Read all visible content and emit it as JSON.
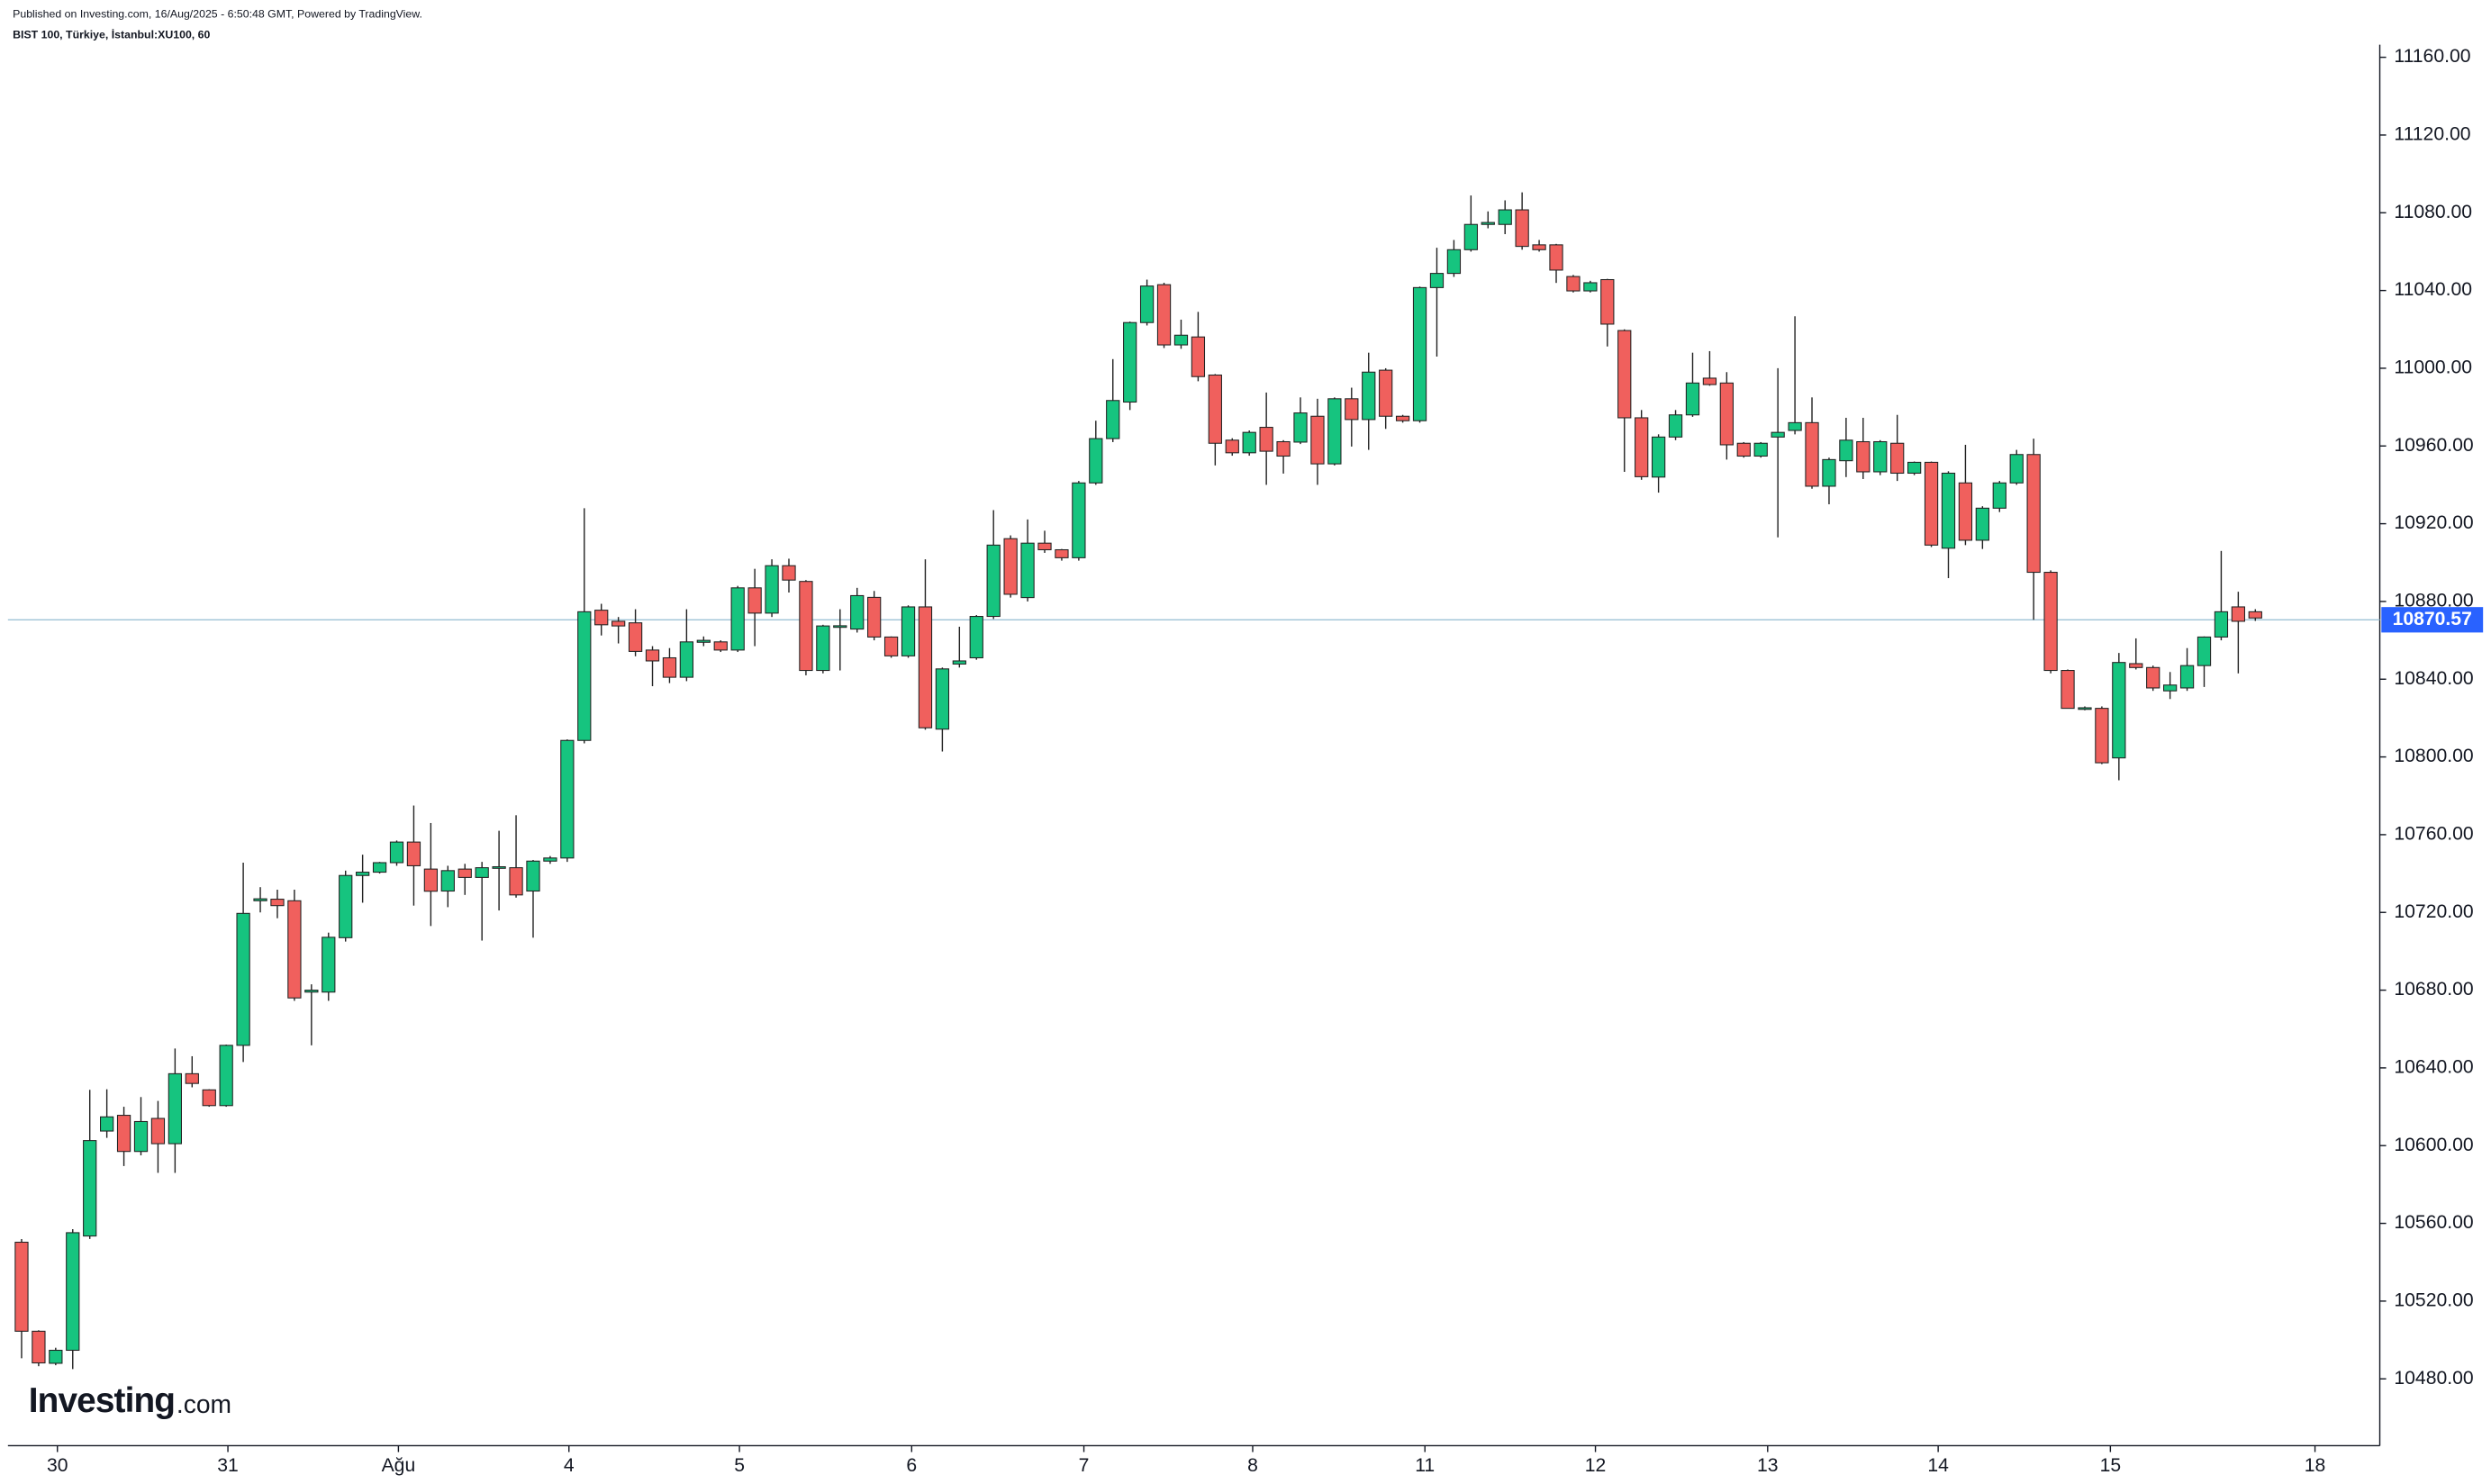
{
  "chart_data": {
    "type": "candlestick",
    "header": "Published on Investing.com, 16/Aug/2025 - 6:50:48 GMT, Powered by TradingView.",
    "symbol": "BIST 100, Türkiye, İstanbul:XU100, 60",
    "logo": "Investing",
    "logo_suffix": ".com",
    "up_color": "#16c47f",
    "down_color": "#f0605d",
    "last_price": 10870.57,
    "last_price_color": "#2962ff",
    "open": [
      10550.3,
      10504.5,
      10488,
      10494.7,
      10553.5,
      10607.5,
      10615.6,
      10597,
      10614,
      10601,
      10637,
      10628.7,
      10620.6,
      10651.6,
      10726,
      10726.8,
      10726,
      10679,
      10679,
      10707,
      10739,
      10740.7,
      10745.6,
      10756.2,
      10742.3,
      10731,
      10742.3,
      10738,
      10743,
      10743,
      10731,
      10746.4,
      10748,
      10808.5,
      10875.5,
      10869.8,
      10869,
      10855,
      10851,
      10841,
      10859,
      10859.2,
      10855,
      10887,
      10874,
      10898.4,
      10890.3,
      10844.5,
      10867,
      10865.8,
      10882.1,
      10861.7,
      10852,
      10877.2,
      10814.3,
      10847.8,
      10851,
      10872.3,
      10912.3,
      10882,
      10910,
      10906.6,
      10902.5,
      10941,
      10963.8,
      10982.6,
      11023.5,
      11043,
      11012,
      11016.1,
      10996.5,
      10963,
      10956.5,
      10969.6,
      10962.2,
      10962,
      10975.3,
      10950.8,
      10984.3,
      10973.6,
      10999,
      10975.3,
      10973,
      11041.5,
      11048.8,
      11061,
      11074,
      11074,
      11081.5,
      11063.5,
      11063.5,
      11047.2,
      11039.8,
      11045.6,
      11019.4,
      10974.5,
      10944,
      10964.6,
      10976,
      10994.9,
      10992.4,
      10961.4,
      10954.8,
      10964.6,
      10968,
      10972,
      10939.3,
      10952.4,
      10962.2,
      10946.7,
      10961.4,
      10946,
      10951.6,
      10907.4,
      10941,
      10911.5,
      10928,
      10941,
      10955.6,
      10895,
      10844.5,
      10825,
      10825,
      10799.5,
      10848,
      10846,
      10834,
      10835.5,
      10847,
      10861.7,
      10877.2,
      10874.7
    ],
    "high": [
      10551.9,
      10505,
      10496,
      10557,
      10628.7,
      10629,
      10620,
      10625,
      10623,
      10650,
      10646,
      10629,
      10652,
      10745.6,
      10733,
      10731.7,
      10731.7,
      10683,
      10709.6,
      10741.5,
      10749.7,
      10746,
      10757,
      10775,
      10766,
      10744,
      10745,
      10746,
      10762,
      10770,
      10747,
      10749,
      10809,
      10928,
      10878.8,
      10872,
      10876,
      10857,
      10856,
      10876,
      10862,
      10860,
      10888,
      10896.8,
      10901.7,
      10902,
      10891,
      10868,
      10876,
      10887,
      10885.4,
      10862,
      10878,
      10901.7,
      10846,
      10867,
      10873,
      10927,
      10914,
      10922.2,
      10916.4,
      10907,
      10942,
      10973,
      11004.7,
      11024,
      11045.6,
      11044,
      11025,
      11029,
      10997,
      10964,
      10968,
      10987.5,
      10963,
      10985,
      10984.3,
      10985,
      10990,
      11008,
      11000,
      10976,
      11042,
      11062,
      11066,
      11088.9,
      11080.7,
      11086.4,
      11090.5,
      11066,
      11064,
      11048,
      11045,
      11046,
      11020,
      10978.5,
      10966,
      10978.5,
      11008,
      11008.8,
      10998,
      10962,
      10962,
      11000,
      11026.7,
      10985,
      10954,
      10974.5,
      10974.5,
      10963,
      10976,
      10952,
      10952,
      10947,
      10960.6,
      10929,
      10942,
      10958,
      10963.8,
      10896,
      10845,
      10826,
      10826,
      10853.5,
      10861,
      10847,
      10843.7,
      10856,
      10862,
      10906,
      10885,
      10876
    ],
    "low": [
      10490.6,
      10486.5,
      10487,
      10485,
      10552,
      10604,
      10589.5,
      10595,
      10586,
      10586,
      10630,
      10620,
      10620,
      10643,
      10720,
      10717,
      10674.5,
      10651.6,
      10674.5,
      10705,
      10725,
      10740,
      10744,
      10723.5,
      10713,
      10722.7,
      10729,
      10705.5,
      10721,
      10727.6,
      10707,
      10745,
      10746,
      10807,
      10862.5,
      10858.4,
      10851.8,
      10836.4,
      10838,
      10839,
      10857,
      10854,
      10854,
      10857,
      10872,
      10884.6,
      10842,
      10843,
      10844.5,
      10864,
      10860,
      10851,
      10851,
      10814,
      10802.8,
      10846,
      10850,
      10871,
      10882,
      10880,
      10905,
      10901,
      10901,
      10940,
      10962,
      10978.5,
      11022,
      11010.4,
      11010,
      10993.3,
      10950,
      10955,
      10955,
      10940,
      10945.8,
      10961,
      10940,
      10950,
      10959.7,
      10958,
      10968.8,
      10972,
      10972,
      11006,
      11047,
      11060,
      11072,
      11069,
      11061,
      11060,
      11043.9,
      11039,
      11039,
      11011.2,
      10946.7,
      10942.6,
      10936,
      10963,
      10975,
      10991,
      10953,
      10954,
      10954,
      10913,
      10966,
      10938,
      10930,
      10944,
      10943,
      10945,
      10942,
      10945,
      10908,
      10892,
      10909,
      10907,
      10926,
      10940,
      10870.6,
      10843,
      10825,
      10824,
      10796.3,
      10788,
      10845,
      10834,
      10829.8,
      10834,
      10836,
      10860,
      10843,
      10870
    ],
    "close": [
      10504.5,
      10488.2,
      10494.7,
      10555.2,
      10602.6,
      10614.8,
      10597,
      10612.4,
      10601,
      10637,
      10632,
      10620.6,
      10651.6,
      10719.5,
      10727,
      10723.5,
      10676,
      10680,
      10707.2,
      10739,
      10740.7,
      10745.6,
      10756.2,
      10744,
      10730.9,
      10741.5,
      10738,
      10743,
      10743.5,
      10729,
      10746.4,
      10748,
      10808.5,
      10874.7,
      10868,
      10867.4,
      10854.3,
      10849.4,
      10841,
      10859.2,
      10860,
      10855,
      10887,
      10874,
      10898.4,
      10891,
      10844.5,
      10867.4,
      10867.5,
      10883,
      10861.7,
      10852,
      10877.2,
      10815,
      10845.3,
      10849.4,
      10872.3,
      10909,
      10883.7,
      10910,
      10906.6,
      10902.5,
      10941,
      10963.8,
      10983.4,
      11023.5,
      11042.3,
      11012,
      11017,
      10995.7,
      10961.4,
      10956.5,
      10967,
      10957.3,
      10954.8,
      10977,
      10950.8,
      10984.3,
      10973.6,
      10998,
      10975.3,
      10973,
      11041.5,
      11048.8,
      11061,
      11074,
      11075,
      11081.5,
      11062.7,
      11061,
      11050.5,
      11039.8,
      11044,
      11022.7,
      10974.5,
      10944.2,
      10964.6,
      10976,
      10992.4,
      10991.6,
      10960.6,
      10954.8,
      10961.4,
      10967,
      10972,
      10939.3,
      10953,
      10963,
      10946.7,
      10962.2,
      10946,
      10951.6,
      10909,
      10946,
      10911.5,
      10928,
      10941,
      10955.6,
      10895,
      10844.5,
      10825,
      10825.3,
      10797,
      10848.6,
      10846,
      10835.5,
      10837,
      10847,
      10861.7,
      10874.7,
      10869.8,
      10871.5
    ],
    "xlim": [
      -0.8,
      138.3
    ],
    "xticks": [
      {
        "value": 2.1,
        "label": "30"
      },
      {
        "value": 12.1,
        "label": "31"
      },
      {
        "value": 22.1,
        "label": "Ağu"
      },
      {
        "value": 32.1,
        "label": "4"
      },
      {
        "value": 42.1,
        "label": "5"
      },
      {
        "value": 52.2,
        "label": "6"
      },
      {
        "value": 62.3,
        "label": "7"
      },
      {
        "value": 72.2,
        "label": "8"
      },
      {
        "value": 82.3,
        "label": "11"
      },
      {
        "value": 92.3,
        "label": "12"
      },
      {
        "value": 102.4,
        "label": "13"
      },
      {
        "value": 112.4,
        "label": "14"
      },
      {
        "value": 122.5,
        "label": "15"
      },
      {
        "value": 134.5,
        "label": "18"
      }
    ],
    "ylim": [
      10445.6,
      11166.5
    ],
    "yticks": [
      {
        "value": 10480,
        "label": "10480.00"
      },
      {
        "value": 10520,
        "label": "10520.00"
      },
      {
        "value": 10560,
        "label": "10560.00"
      },
      {
        "value": 10600,
        "label": "10600.00"
      },
      {
        "value": 10640,
        "label": "10640.00"
      },
      {
        "value": 10680,
        "label": "10680.00"
      },
      {
        "value": 10720,
        "label": "10720.00"
      },
      {
        "value": 10760,
        "label": "10760.00"
      },
      {
        "value": 10800,
        "label": "10800.00"
      },
      {
        "value": 10840,
        "label": "10840.00"
      },
      {
        "value": 10880,
        "label": "10880.00"
      },
      {
        "value": 10920,
        "label": "10920.00"
      },
      {
        "value": 10960,
        "label": "10960.00"
      },
      {
        "value": 11000,
        "label": "11000.00"
      },
      {
        "value": 11040,
        "label": "11040.00"
      },
      {
        "value": 11080,
        "label": "11080.00"
      },
      {
        "value": 11120,
        "label": "11120.00"
      },
      {
        "value": 11160,
        "label": "11160.00"
      }
    ],
    "grid": false
  }
}
